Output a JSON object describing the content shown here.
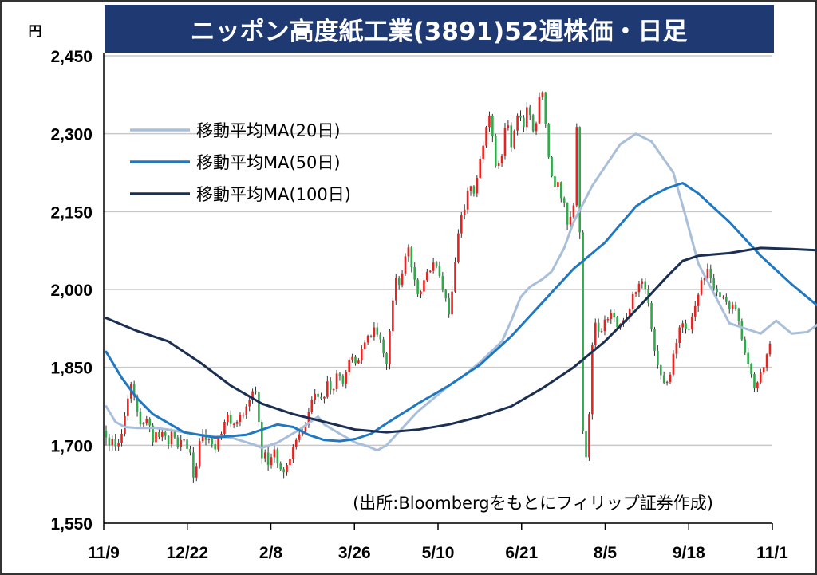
{
  "chart_data": {
    "type": "candlestick",
    "title": "ニッポン高度紙工業(3891)52週株価・日足",
    "ylabel": "円",
    "ylim": [
      1550,
      2450
    ],
    "yticks": [
      "2,450",
      "2,300",
      "2,150",
      "2,000",
      "1,850",
      "1,700",
      "1,550"
    ],
    "ytick_values": [
      2450,
      2300,
      2150,
      2000,
      1850,
      1700,
      1550
    ],
    "xticks": [
      "11/9",
      "12/22",
      "2/8",
      "3/26",
      "5/10",
      "6/21",
      "8/5",
      "9/18",
      "11/1"
    ],
    "grid": "horizontal",
    "legend_position": "top-left",
    "source_note": "(出所:Bloombergをもとにフィリップ証券作成)",
    "colors": {
      "up": "#e8231f",
      "down": "#2faa4a",
      "title_bg": "#1f3a73"
    },
    "series": [
      {
        "name": "移動平均MA(20日)",
        "color": "#a9bfd9",
        "x": [
          0,
          3,
          6,
          10,
          16,
          20,
          30,
          40,
          48,
          50,
          55,
          62,
          68,
          70,
          75,
          78,
          80,
          84,
          87,
          90,
          100,
          110,
          115,
          120,
          127,
          130,
          133,
          136,
          140,
          143,
          147,
          150,
          156,
          165,
          170,
          175,
          182,
          186,
          190,
          200,
          210,
          215,
          220,
          225,
          230,
          235,
          240,
          242
        ],
        "values": [
          1775,
          1745,
          1735,
          1733,
          1733,
          1730,
          1720,
          1715,
          1700,
          1695,
          1705,
          1730,
          1755,
          1740,
          1722,
          1712,
          1705,
          1698,
          1690,
          1700,
          1765,
          1815,
          1835,
          1860,
          1900,
          1940,
          1985,
          2005,
          2020,
          2035,
          2080,
          2130,
          2200,
          2280,
          2300,
          2285,
          2225,
          2140,
          2050,
          1935,
          1915,
          1940,
          1915,
          1918,
          1940,
          1970,
          1950,
          1900
        ]
      },
      {
        "name": "移動平均MA(50日)",
        "color": "#1f78c1",
        "x": [
          0,
          5,
          10,
          15,
          25,
          35,
          45,
          55,
          60,
          65,
          70,
          75,
          80,
          85,
          90,
          100,
          110,
          120,
          130,
          140,
          150,
          160,
          170,
          175,
          180,
          185,
          190,
          200,
          210,
          220,
          230,
          235,
          240,
          242
        ],
        "values": [
          1880,
          1830,
          1790,
          1760,
          1725,
          1715,
          1720,
          1740,
          1735,
          1720,
          1710,
          1708,
          1712,
          1722,
          1742,
          1780,
          1815,
          1855,
          1910,
          1975,
          2040,
          2090,
          2160,
          2180,
          2195,
          2205,
          2185,
          2130,
          2065,
          2010,
          1960,
          1940,
          1928,
          1925
        ]
      },
      {
        "name": "移動平均MA(100日)",
        "color": "#1b2f52",
        "x": [
          0,
          10,
          20,
          30,
          40,
          50,
          60,
          70,
          80,
          90,
          100,
          110,
          120,
          130,
          140,
          150,
          160,
          170,
          180,
          185,
          190,
          200,
          210,
          220,
          230,
          235,
          240,
          242
        ],
        "values": [
          1945,
          1920,
          1900,
          1860,
          1815,
          1780,
          1760,
          1745,
          1730,
          1725,
          1730,
          1740,
          1755,
          1775,
          1810,
          1850,
          1900,
          1960,
          2025,
          2055,
          2065,
          2070,
          2080,
          2078,
          2075,
          2065,
          2052,
          2045
        ]
      }
    ],
    "candles": [
      [
        1728,
        1715,
        1738,
        1700
      ],
      [
        1715,
        1700,
        1722,
        1688
      ],
      [
        1700,
        1712,
        1718,
        1690
      ],
      [
        1712,
        1698,
        1722,
        1690
      ],
      [
        1698,
        1705,
        1712,
        1689
      ],
      [
        1705,
        1722,
        1731,
        1698
      ],
      [
        1722,
        1756,
        1764,
        1717
      ],
      [
        1756,
        1790,
        1797,
        1747
      ],
      [
        1790,
        1818,
        1822,
        1782
      ],
      [
        1818,
        1794,
        1824,
        1786
      ],
      [
        1794,
        1765,
        1798,
        1755
      ],
      [
        1765,
        1740,
        1772,
        1736
      ],
      [
        1740,
        1742,
        1745,
        1733
      ],
      [
        1742,
        1751,
        1756,
        1738
      ],
      [
        1751,
        1738,
        1754,
        1725
      ],
      [
        1738,
        1706,
        1742,
        1699
      ],
      [
        1706,
        1725,
        1734,
        1697
      ],
      [
        1725,
        1716,
        1732,
        1711
      ],
      [
        1716,
        1725,
        1732,
        1708
      ],
      [
        1725,
        1718,
        1728,
        1710
      ],
      [
        1718,
        1702,
        1719,
        1693
      ],
      [
        1702,
        1726,
        1732,
        1695
      ],
      [
        1726,
        1715,
        1730,
        1712
      ],
      [
        1715,
        1697,
        1720,
        1693
      ],
      [
        1697,
        1710,
        1719,
        1689
      ],
      [
        1710,
        1711,
        1713,
        1706
      ],
      [
        1711,
        1693,
        1718,
        1684
      ],
      [
        1693,
        1686,
        1699,
        1680
      ],
      [
        1686,
        1638,
        1696,
        1627
      ],
      [
        1638,
        1660,
        1666,
        1631
      ],
      [
        1660,
        1708,
        1714,
        1655
      ],
      [
        1708,
        1722,
        1731,
        1705
      ],
      [
        1722,
        1710,
        1731,
        1700
      ],
      [
        1710,
        1712,
        1714,
        1703
      ],
      [
        1712,
        1702,
        1720,
        1695
      ],
      [
        1702,
        1692,
        1710,
        1685
      ],
      [
        1692,
        1714,
        1718,
        1687
      ],
      [
        1714,
        1722,
        1726,
        1710
      ],
      [
        1722,
        1745,
        1749,
        1715
      ],
      [
        1745,
        1759,
        1765,
        1738
      ],
      [
        1759,
        1741,
        1767,
        1734
      ],
      [
        1741,
        1741,
        1744,
        1733
      ],
      [
        1741,
        1745,
        1748,
        1735
      ],
      [
        1745,
        1759,
        1764,
        1737
      ],
      [
        1759,
        1759,
        1763,
        1752
      ],
      [
        1759,
        1775,
        1779,
        1751
      ],
      [
        1775,
        1788,
        1792,
        1766
      ],
      [
        1788,
        1804,
        1809,
        1780
      ],
      [
        1804,
        1802,
        1813,
        1798
      ],
      [
        1802,
        1745,
        1806,
        1736
      ],
      [
        1745,
        1675,
        1749,
        1664
      ],
      [
        1675,
        1686,
        1692,
        1668
      ],
      [
        1686,
        1662,
        1696,
        1651
      ],
      [
        1662,
        1677,
        1684,
        1655
      ],
      [
        1677,
        1692,
        1699,
        1667
      ],
      [
        1692,
        1665,
        1695,
        1656
      ],
      [
        1665,
        1654,
        1669,
        1651
      ],
      [
        1654,
        1648,
        1658,
        1637
      ],
      [
        1648,
        1662,
        1666,
        1641
      ],
      [
        1662,
        1674,
        1683,
        1656
      ],
      [
        1674,
        1697,
        1702,
        1666
      ],
      [
        1697,
        1710,
        1714,
        1692
      ],
      [
        1710,
        1721,
        1729,
        1706
      ],
      [
        1721,
        1727,
        1732,
        1717
      ],
      [
        1727,
        1739,
        1745,
        1722
      ],
      [
        1739,
        1764,
        1772,
        1733
      ],
      [
        1764,
        1788,
        1794,
        1760
      ],
      [
        1788,
        1799,
        1808,
        1779
      ],
      [
        1799,
        1793,
        1804,
        1783
      ],
      [
        1793,
        1790,
        1801,
        1787
      ],
      [
        1790,
        1793,
        1794,
        1781
      ],
      [
        1793,
        1823,
        1833,
        1790
      ],
      [
        1823,
        1807,
        1831,
        1798
      ],
      [
        1807,
        1808,
        1810,
        1798
      ],
      [
        1808,
        1838,
        1845,
        1803
      ],
      [
        1838,
        1833,
        1841,
        1824
      ],
      [
        1833,
        1819,
        1837,
        1813
      ],
      [
        1819,
        1841,
        1845,
        1809
      ],
      [
        1841,
        1865,
        1869,
        1835
      ],
      [
        1865,
        1870,
        1876,
        1859
      ],
      [
        1870,
        1858,
        1874,
        1853
      ],
      [
        1858,
        1863,
        1868,
        1856
      ],
      [
        1863,
        1885,
        1893,
        1856
      ],
      [
        1885,
        1898,
        1903,
        1884
      ],
      [
        1898,
        1911,
        1913,
        1894
      ],
      [
        1911,
        1909,
        1913,
        1907
      ],
      [
        1909,
        1927,
        1937,
        1902
      ],
      [
        1927,
        1913,
        1936,
        1908
      ],
      [
        1913,
        1904,
        1918,
        1897
      ],
      [
        1904,
        1877,
        1909,
        1869
      ],
      [
        1877,
        1856,
        1879,
        1845
      ],
      [
        1856,
        1920,
        1924,
        1846
      ],
      [
        1920,
        1979,
        1984,
        1911
      ],
      [
        1979,
        2023,
        2030,
        1970
      ],
      [
        2023,
        2009,
        2026,
        1999
      ],
      [
        2009,
        2031,
        2037,
        2004
      ],
      [
        2031,
        2064,
        2070,
        2026
      ],
      [
        2064,
        2081,
        2087,
        2054
      ],
      [
        2081,
        2043,
        2083,
        2033
      ],
      [
        2043,
        2019,
        2052,
        2007
      ],
      [
        2019,
        1991,
        2022,
        1985
      ],
      [
        1991,
        1996,
        1998,
        1983
      ],
      [
        1996,
        2018,
        2022,
        1988
      ],
      [
        2018,
        2034,
        2040,
        2014
      ],
      [
        2034,
        2036,
        2038,
        2032
      ],
      [
        2036,
        2052,
        2061,
        2031
      ],
      [
        2052,
        2045,
        2055,
        2041
      ],
      [
        2045,
        2026,
        2054,
        2023
      ],
      [
        2026,
        1999,
        2034,
        1995
      ],
      [
        1999,
        1983,
        2001,
        1976
      ],
      [
        1983,
        1952,
        1992,
        1945
      ],
      [
        1952,
        1996,
        2006,
        1948
      ],
      [
        1996,
        2053,
        2062,
        1993
      ],
      [
        2053,
        2108,
        2116,
        2050
      ],
      [
        2108,
        2143,
        2149,
        2100
      ],
      [
        2143,
        2154,
        2164,
        2135
      ],
      [
        2154,
        2190,
        2196,
        2146
      ],
      [
        2190,
        2199,
        2200,
        2180
      ],
      [
        2199,
        2185,
        2201,
        2179
      ],
      [
        2185,
        2215,
        2220,
        2178
      ],
      [
        2215,
        2252,
        2257,
        2212
      ],
      [
        2252,
        2277,
        2285,
        2244
      ],
      [
        2277,
        2313,
        2315,
        2273
      ],
      [
        2313,
        2335,
        2343,
        2304
      ],
      [
        2335,
        2295,
        2338,
        2284
      ],
      [
        2295,
        2238,
        2300,
        2234
      ],
      [
        2238,
        2243,
        2248,
        2232
      ],
      [
        2243,
        2258,
        2261,
        2236
      ],
      [
        2258,
        2311,
        2321,
        2251
      ],
      [
        2311,
        2316,
        2326,
        2306
      ],
      [
        2316,
        2274,
        2322,
        2265
      ],
      [
        2274,
        2306,
        2308,
        2270
      ],
      [
        2306,
        2335,
        2339,
        2297
      ],
      [
        2335,
        2331,
        2345,
        2324
      ],
      [
        2331,
        2313,
        2336,
        2303
      ],
      [
        2313,
        2351,
        2361,
        2305
      ],
      [
        2351,
        2336,
        2355,
        2326
      ],
      [
        2336,
        2305,
        2338,
        2302
      ],
      [
        2305,
        2320,
        2323,
        2298
      ],
      [
        2320,
        2370,
        2380,
        2318
      ],
      [
        2370,
        2380,
        2382,
        2365
      ],
      [
        2380,
        2318,
        2381,
        2312
      ],
      [
        2318,
        2255,
        2321,
        2252
      ],
      [
        2255,
        2218,
        2257,
        2216
      ],
      [
        2218,
        2198,
        2222,
        2197
      ],
      [
        2198,
        2207,
        2209,
        2192
      ],
      [
        2207,
        2176,
        2208,
        2168
      ],
      [
        2176,
        2167,
        2179,
        2158
      ],
      [
        2167,
        2125,
        2168,
        2114
      ],
      [
        2125,
        2140,
        2150,
        2119
      ],
      [
        2140,
        2162,
        2167,
        2137
      ],
      [
        2162,
        2313,
        2320,
        2158
      ],
      [
        2313,
        2110,
        2314,
        2097
      ],
      [
        2110,
        1728,
        2114,
        1722
      ],
      [
        1728,
        1677,
        1729,
        1664
      ],
      [
        1677,
        1760,
        1765,
        1670
      ],
      [
        1760,
        1893,
        1898,
        1749
      ],
      [
        1893,
        1936,
        1944,
        1884
      ],
      [
        1936,
        1919,
        1944,
        1907
      ],
      [
        1919,
        1920,
        1926,
        1916
      ],
      [
        1920,
        1942,
        1950,
        1912
      ],
      [
        1942,
        1943,
        1947,
        1936
      ],
      [
        1943,
        1955,
        1961,
        1934
      ],
      [
        1955,
        1946,
        1962,
        1937
      ],
      [
        1946,
        1927,
        1949,
        1923
      ],
      [
        1927,
        1934,
        1935,
        1922
      ],
      [
        1934,
        1941,
        1945,
        1928
      ],
      [
        1941,
        1945,
        1954,
        1937
      ],
      [
        1945,
        1962,
        1965,
        1937
      ],
      [
        1962,
        1991,
        1996,
        1954
      ],
      [
        1991,
        1995,
        1996,
        1986
      ],
      [
        1995,
        2011,
        2017,
        1985
      ],
      [
        2011,
        2016,
        2021,
        2002
      ],
      [
        2016,
        2000,
        2022,
        1991
      ],
      [
        2000,
        1974,
        2009,
        1967
      ],
      [
        1974,
        1924,
        1977,
        1919
      ],
      [
        1924,
        1882,
        1928,
        1872
      ],
      [
        1882,
        1854,
        1893,
        1847
      ],
      [
        1854,
        1835,
        1856,
        1827
      ],
      [
        1835,
        1820,
        1842,
        1818
      ],
      [
        1820,
        1822,
        1824,
        1815
      ],
      [
        1822,
        1836,
        1841,
        1818
      ],
      [
        1836,
        1876,
        1883,
        1832
      ],
      [
        1876,
        1897,
        1905,
        1867
      ],
      [
        1897,
        1927,
        1931,
        1888
      ],
      [
        1927,
        1935,
        1941,
        1917
      ],
      [
        1935,
        1924,
        1942,
        1915
      ],
      [
        1924,
        1923,
        1930,
        1919
      ],
      [
        1923,
        1948,
        1954,
        1915
      ],
      [
        1948,
        1968,
        1978,
        1939
      ],
      [
        1968,
        1990,
        1994,
        1957
      ],
      [
        1990,
        2018,
        2024,
        1988
      ],
      [
        2018,
        2022,
        2024,
        2009
      ],
      [
        2022,
        2040,
        2050,
        2018
      ],
      [
        2040,
        2022,
        2048,
        2012
      ],
      [
        2022,
        2002,
        2030,
        1997
      ],
      [
        2002,
        1995,
        2009,
        1987
      ],
      [
        1995,
        1986,
        2001,
        1978
      ],
      [
        1986,
        1986,
        1989,
        1981
      ],
      [
        1986,
        1976,
        1992,
        1971
      ],
      [
        1976,
        1963,
        1979,
        1953
      ],
      [
        1963,
        1971,
        1976,
        1953
      ],
      [
        1971,
        1963,
        1976,
        1959
      ],
      [
        1963,
        1939,
        1965,
        1931
      ],
      [
        1939,
        1904,
        1944,
        1901
      ],
      [
        1904,
        1878,
        1910,
        1874
      ],
      [
        1878,
        1857,
        1888,
        1850
      ],
      [
        1857,
        1837,
        1858,
        1830
      ],
      [
        1837,
        1810,
        1840,
        1802
      ],
      [
        1810,
        1821,
        1823,
        1803
      ],
      [
        1821,
        1840,
        1847,
        1818
      ],
      [
        1840,
        1850,
        1851,
        1836
      ],
      [
        1850,
        1875,
        1877,
        1843
      ],
      [
        1875,
        1896,
        1901,
        1870
      ]
    ]
  }
}
